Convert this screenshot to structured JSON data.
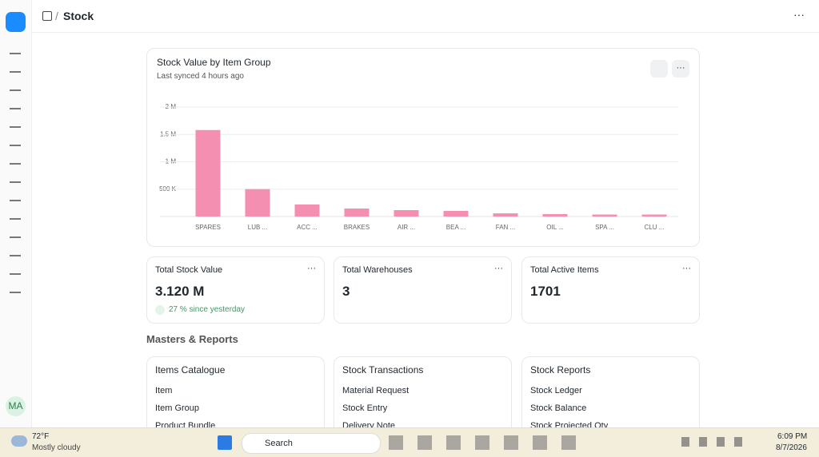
{
  "header": {
    "breadcrumb": "Stock"
  },
  "sidebar": {
    "avatar": "MA"
  },
  "chart_data": {
    "type": "bar",
    "title": "Stock Value by Item Group",
    "subtitle": "Last synced 4 hours ago",
    "categories": [
      "SPARES",
      "LUB ...",
      "ACC ...",
      "BRAKES",
      "AIR ...",
      "BEA ...",
      "FAN ...",
      "OIL ...",
      "SPA ...",
      "CLU ..."
    ],
    "values": [
      1580000,
      500000,
      220000,
      146000,
      117000,
      102000,
      58000,
      44000,
      36000,
      36000
    ],
    "color": "#f48fb1",
    "ylim": [
      0,
      2000000
    ],
    "yticks": [
      {
        "value": 500000,
        "label": "500 K"
      },
      {
        "value": 1000000,
        "label": "1 M"
      },
      {
        "value": 1500000,
        "label": "1.5 M"
      },
      {
        "value": 2000000,
        "label": "2 M"
      }
    ],
    "grid": true
  },
  "kpis": [
    {
      "label": "Total Stock Value",
      "value": "3.120 M",
      "change": "27 % since yesterday"
    },
    {
      "label": "Total Warehouses",
      "value": 3
    },
    {
      "label": "Total Active Items",
      "value": 1701
    }
  ],
  "section_title": "Masters & Reports",
  "cards": [
    {
      "title": "Items Catalogue",
      "links": [
        "Item",
        "Item Group",
        "Product Bundle"
      ]
    },
    {
      "title": "Stock Transactions",
      "links": [
        "Material Request",
        "Stock Entry",
        "Delivery Note"
      ]
    },
    {
      "title": "Stock Reports",
      "links": [
        "Stock Ledger",
        "Stock Balance",
        "Stock Projected Qty"
      ]
    }
  ],
  "taskbar": {
    "temperature": "72°F",
    "weather": "Mostly cloudy",
    "search": "Search",
    "time": "6:09 PM",
    "date": "8/7/2026"
  }
}
